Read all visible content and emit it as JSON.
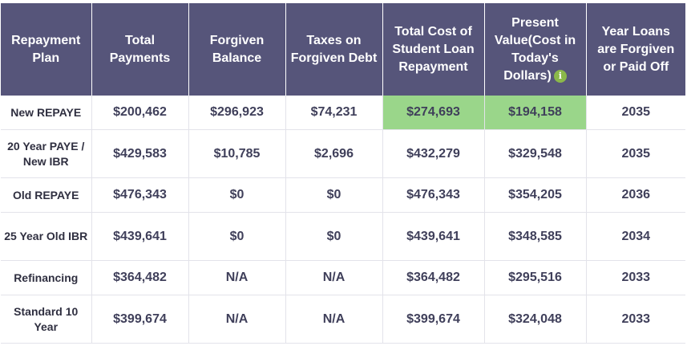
{
  "table": {
    "headers": {
      "plan": "Repayment Plan",
      "total_payments": "Total Payments",
      "forgiven_balance": "Forgiven Balance",
      "taxes": "Taxes on Forgiven Debt",
      "total_cost": "Total Cost of Student Loan Repayment",
      "present_value": "Present Value(Cost in Today's Dollars)",
      "year": "Year Loans are Forgiven or Paid Off"
    },
    "info_icon": {
      "glyph": "i",
      "icon": "info-icon",
      "color": "#8bb84a"
    },
    "rows": [
      {
        "plan": "New REPAYE",
        "total_payments": "$200,462",
        "forgiven_balance": "$296,923",
        "taxes": "$74,231",
        "total_cost": "$274,693",
        "present_value": "$194,158",
        "year": "2035"
      },
      {
        "plan": "20 Year PAYE / New IBR",
        "total_payments": "$429,583",
        "forgiven_balance": "$10,785",
        "taxes": "$2,696",
        "total_cost": "$432,279",
        "present_value": "$329,548",
        "year": "2035"
      },
      {
        "plan": "Old REPAYE",
        "total_payments": "$476,343",
        "forgiven_balance": "$0",
        "taxes": "$0",
        "total_cost": "$476,343",
        "present_value": "$354,205",
        "year": "2036"
      },
      {
        "plan": "25 Year Old IBR",
        "total_payments": "$439,641",
        "forgiven_balance": "$0",
        "taxes": "$0",
        "total_cost": "$439,641",
        "present_value": "$348,585",
        "year": "2034"
      },
      {
        "plan": "Refinancing",
        "total_payments": "$364,482",
        "forgiven_balance": "N/A",
        "taxes": "N/A",
        "total_cost": "$364,482",
        "present_value": "$295,516",
        "year": "2033"
      },
      {
        "plan": "Standard 10 Year",
        "total_payments": "$399,674",
        "forgiven_balance": "N/A",
        "taxes": "N/A",
        "total_cost": "$399,674",
        "present_value": "$324,048",
        "year": "2033"
      }
    ]
  },
  "colors": {
    "header_bg": "#56557a",
    "highlight": "#9ad68a",
    "text": "#3f3f5a"
  }
}
